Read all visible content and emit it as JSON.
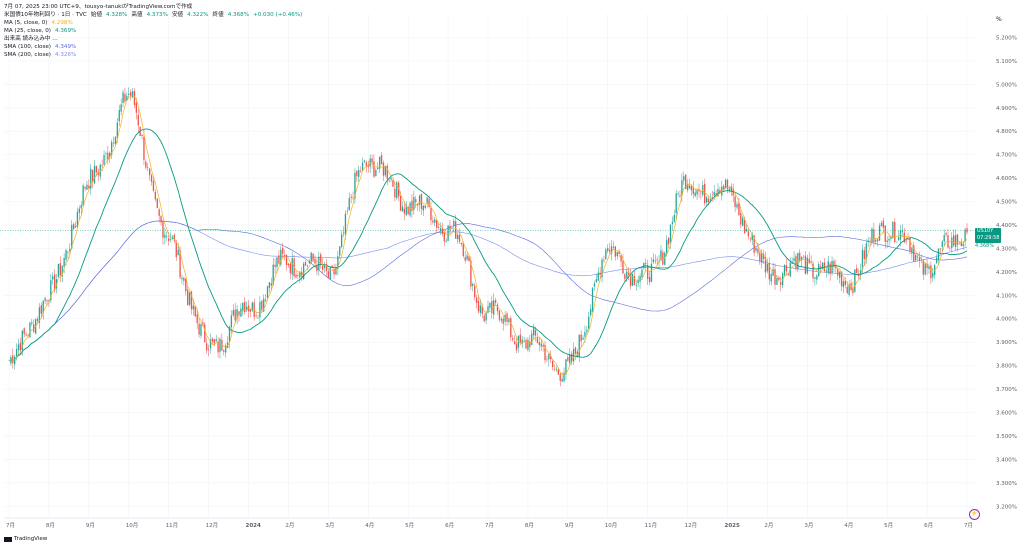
{
  "header": {
    "timestamp": "7月 07, 2025 23:00 UTC+9、tousyo-tanukiがTradingView.comで作成",
    "symbol_line": "米国債10年物利回り · 1日 · TVC",
    "open_label": "始値",
    "open_value": "4.328%",
    "high_label": "高値",
    "high_value": "4.373%",
    "low_label": "安値",
    "low_value": "4.322%",
    "close_label": "終値",
    "close_value": "4.368%",
    "change": "+0.030 (+0.46%)",
    "indicators": [
      {
        "name": "MA (5, close, 0)",
        "value": "4.298%",
        "color": "#f2b01e"
      },
      {
        "name": "MA (25, close, 0)",
        "value": "4.369%",
        "color": "#089981"
      },
      {
        "name": "出来高 読み込み中 …",
        "value": "",
        "color": "#131722"
      },
      {
        "name": "SMA (100, close)",
        "value": "4.349%",
        "color": "#5b6be0"
      },
      {
        "name": "SMA (200, close)",
        "value": "4.326%",
        "color": "#7b8cf0"
      }
    ]
  },
  "price_tag": {
    "symbol": "US10Y",
    "price": "4.368%",
    "countdown": "07:29:58"
  },
  "unit_label": "%",
  "branding": "TradingView",
  "chart_data": {
    "type": "candlestick",
    "title": "米国債10年物利回り",
    "ylabel": "%",
    "ylim": [
      3.15,
      5.3
    ],
    "y_ticks": [
      "5.200%",
      "5.100%",
      "5.000%",
      "4.900%",
      "4.800%",
      "4.700%",
      "4.600%",
      "4.500%",
      "4.400%",
      "4.300%",
      "4.200%",
      "4.100%",
      "4.000%",
      "3.900%",
      "3.800%",
      "3.700%",
      "3.600%",
      "3.500%",
      "3.400%",
      "3.300%",
      "3.200%"
    ],
    "x_ticks": [
      "7月",
      "8月",
      "9月",
      "10月",
      "11月",
      "12月",
      "2024",
      "2月",
      "3月",
      "4月",
      "5月",
      "6月",
      "7月",
      "8月",
      "9月",
      "10月",
      "11月",
      "12月",
      "2025",
      "2月",
      "3月",
      "4月",
      "5月",
      "6月",
      "7月"
    ],
    "monthly_close": [
      3.82,
      4.1,
      4.57,
      4.93,
      4.33,
      3.88,
      4.05,
      4.25,
      4.2,
      4.68,
      4.5,
      4.4,
      4.03,
      3.9,
      3.78,
      4.28,
      4.17,
      4.57,
      4.54,
      4.21,
      4.23,
      4.17,
      4.4,
      4.23,
      4.37
    ],
    "series": [
      {
        "name": "MA (5, close, 0)",
        "last": 4.298
      },
      {
        "name": "MA (25, close, 0)",
        "last": 4.369
      },
      {
        "name": "SMA (100, close)",
        "last": 4.349
      },
      {
        "name": "SMA (200, close)",
        "last": 4.326
      }
    ],
    "last_close": 4.368,
    "grid": true
  }
}
